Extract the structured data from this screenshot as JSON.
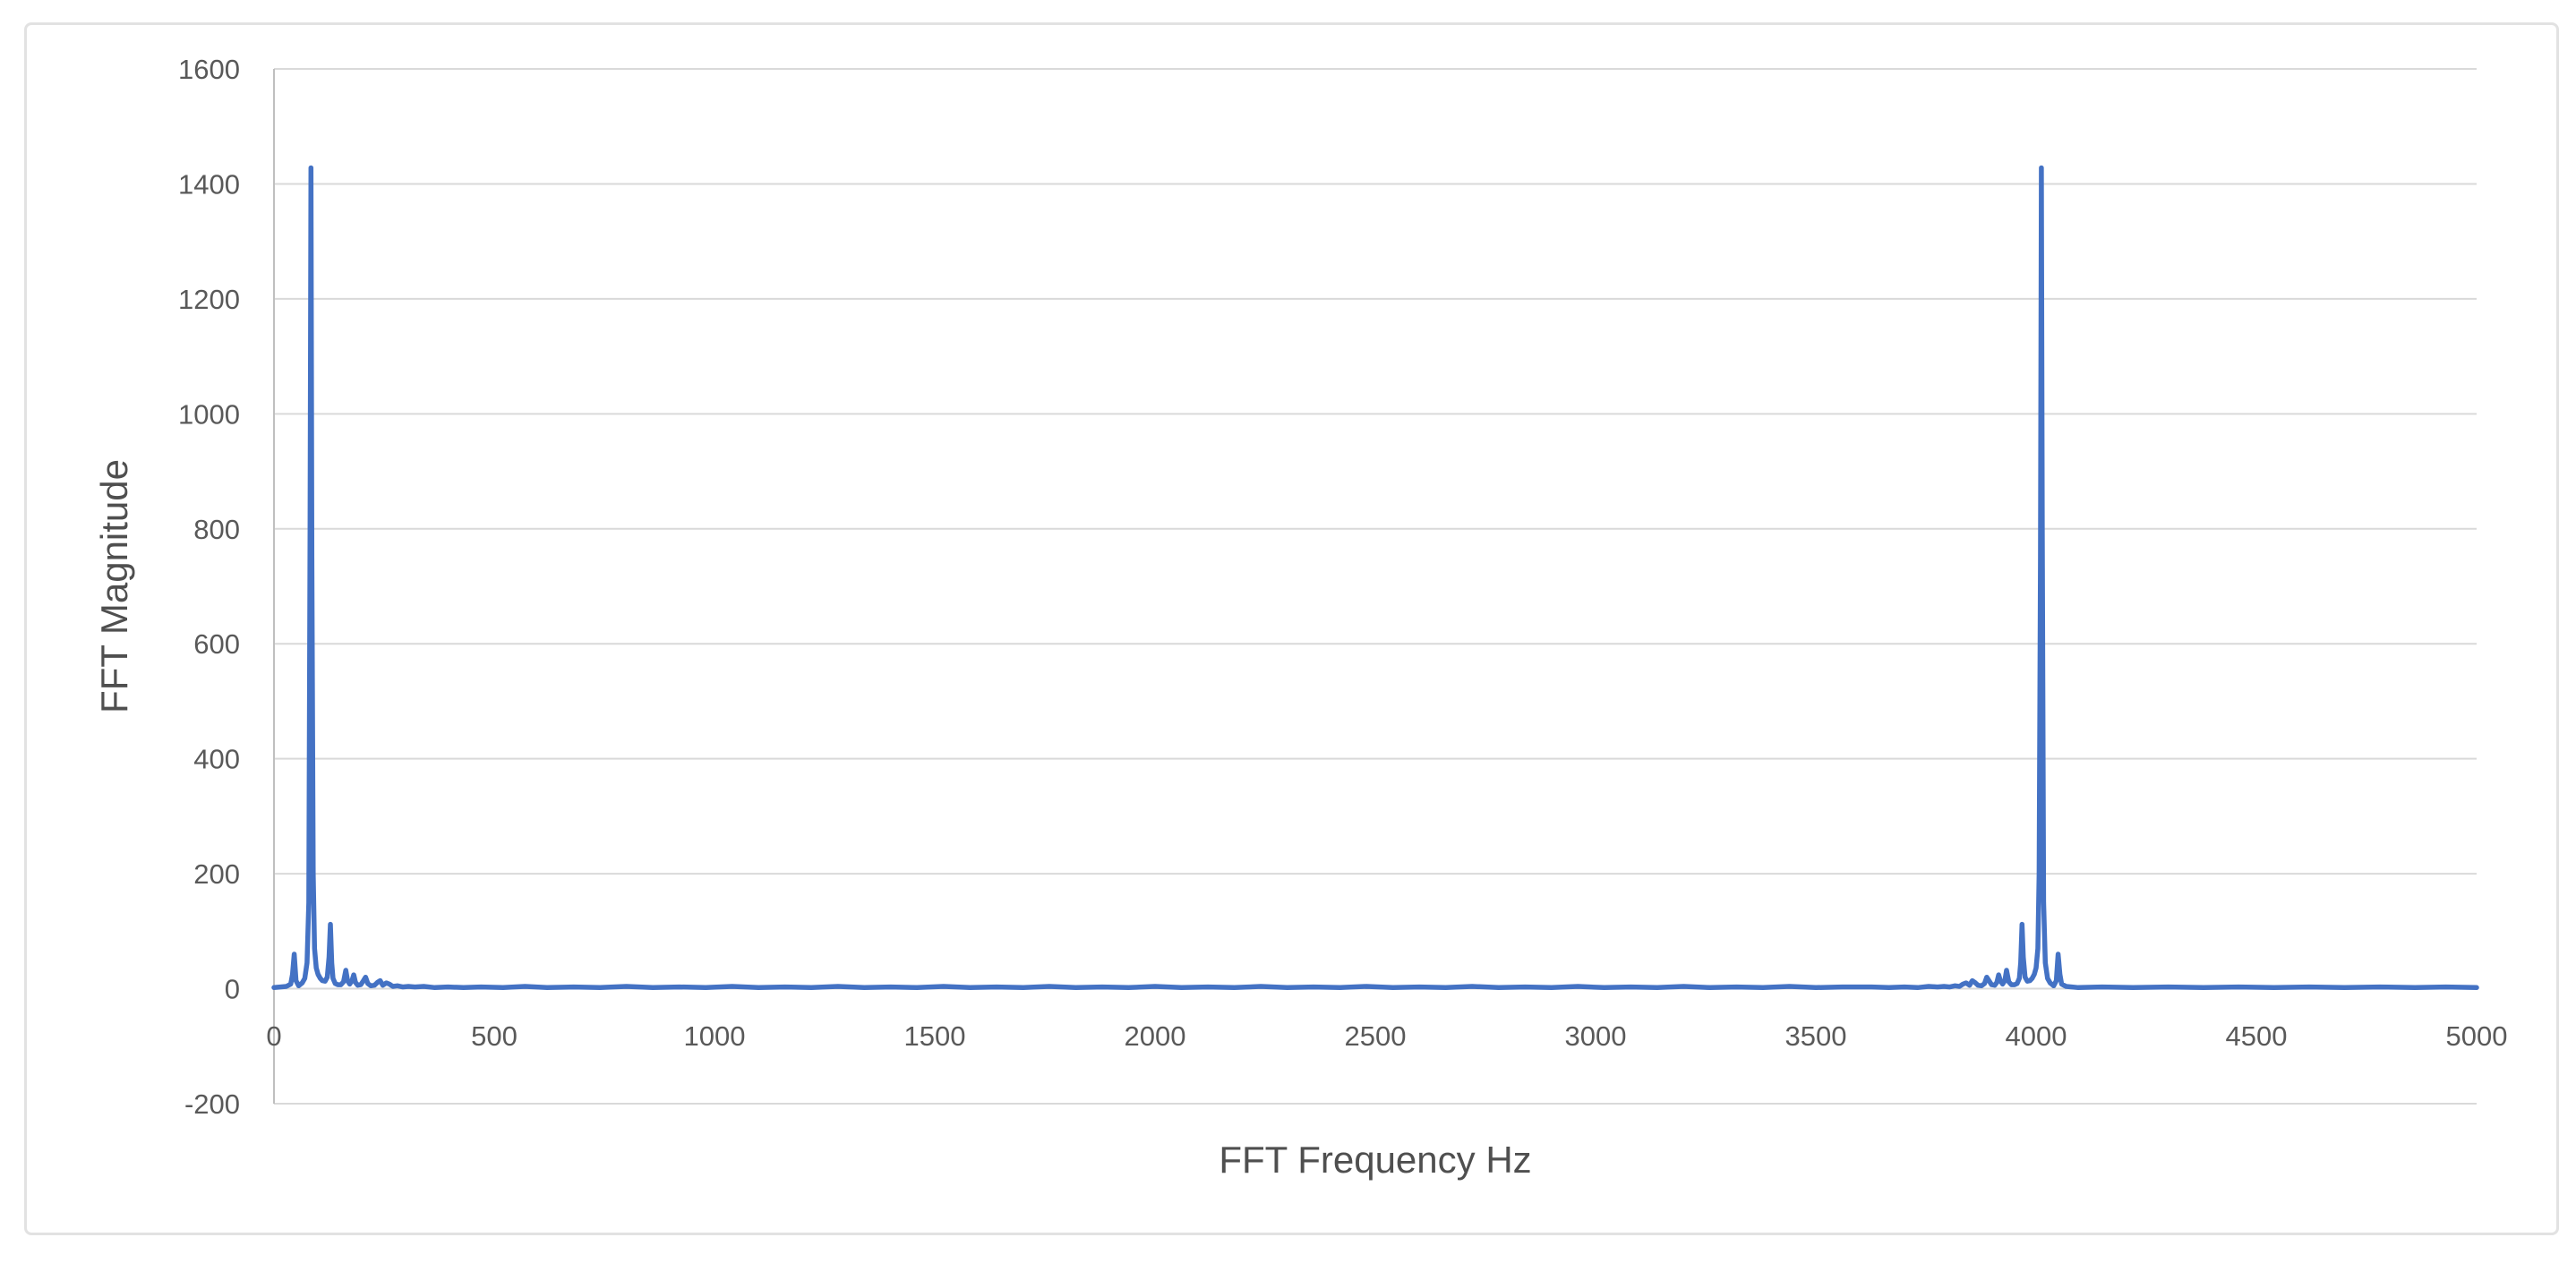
{
  "chart_data": {
    "type": "line",
    "title": "",
    "xlabel": "FFT Frequency Hz",
    "ylabel": "FFT Magnitude",
    "xlim": [
      0,
      5000
    ],
    "ylim": [
      -200,
      1600
    ],
    "x_ticks": [
      0,
      500,
      1000,
      1500,
      2000,
      2500,
      3000,
      3500,
      4000,
      4500,
      5000
    ],
    "y_ticks": [
      1600,
      1400,
      1200,
      1000,
      800,
      600,
      400,
      200,
      0,
      -200
    ],
    "grid": "horizontal gridlines only",
    "legend_position": "none",
    "line_color": "#4472C4",
    "gridline_color": "#d9d9d9",
    "axis_line_color": "#bfbfbf",
    "tick_label_color": "#595959",
    "axis_title_color": "#4f4f4f",
    "frame_border_color": "#e2e2e2",
    "line_width": 5.5,
    "main_peaks": [
      {
        "x": 84,
        "y": 1428
      },
      {
        "x": 4012,
        "y": 1428
      }
    ],
    "secondary_peaks": [
      {
        "x": 46,
        "y": 60
      },
      {
        "x": 128,
        "y": 112
      },
      {
        "x": 163,
        "y": 32
      },
      {
        "x": 3933,
        "y": 32
      },
      {
        "x": 3968,
        "y": 112
      },
      {
        "x": 4050,
        "y": 60
      }
    ],
    "series": [
      {
        "name": "FFT Magnitude",
        "points": [
          [
            0,
            2
          ],
          [
            15,
            3
          ],
          [
            28,
            4
          ],
          [
            38,
            8
          ],
          [
            42,
            25
          ],
          [
            46,
            60
          ],
          [
            50,
            14
          ],
          [
            56,
            5
          ],
          [
            64,
            10
          ],
          [
            70,
            18
          ],
          [
            75,
            45
          ],
          [
            79,
            150
          ],
          [
            82,
            800
          ],
          [
            84,
            1428
          ],
          [
            86,
            750
          ],
          [
            89,
            200
          ],
          [
            92,
            70
          ],
          [
            96,
            36
          ],
          [
            100,
            25
          ],
          [
            105,
            18
          ],
          [
            110,
            14
          ],
          [
            116,
            13
          ],
          [
            121,
            20
          ],
          [
            125,
            55
          ],
          [
            128,
            112
          ],
          [
            131,
            45
          ],
          [
            134,
            18
          ],
          [
            139,
            9
          ],
          [
            145,
            7
          ],
          [
            152,
            7
          ],
          [
            158,
            12
          ],
          [
            163,
            32
          ],
          [
            167,
            14
          ],
          [
            172,
            8
          ],
          [
            177,
            14
          ],
          [
            181,
            24
          ],
          [
            185,
            11
          ],
          [
            190,
            6
          ],
          [
            197,
            7
          ],
          [
            203,
            14
          ],
          [
            208,
            20
          ],
          [
            213,
            9
          ],
          [
            220,
            5
          ],
          [
            228,
            6
          ],
          [
            235,
            11
          ],
          [
            241,
            14
          ],
          [
            247,
            6
          ],
          [
            255,
            10
          ],
          [
            262,
            8
          ],
          [
            270,
            4
          ],
          [
            280,
            5
          ],
          [
            292,
            3
          ],
          [
            305,
            4
          ],
          [
            320,
            3
          ],
          [
            340,
            4
          ],
          [
            365,
            2
          ],
          [
            395,
            3
          ],
          [
            430,
            2
          ],
          [
            470,
            3
          ],
          [
            520,
            2
          ],
          [
            570,
            4
          ],
          [
            620,
            2
          ],
          [
            680,
            3
          ],
          [
            740,
            2
          ],
          [
            800,
            4
          ],
          [
            860,
            2
          ],
          [
            920,
            3
          ],
          [
            980,
            2
          ],
          [
            1040,
            4
          ],
          [
            1100,
            2
          ],
          [
            1160,
            3
          ],
          [
            1220,
            2
          ],
          [
            1280,
            4
          ],
          [
            1340,
            2
          ],
          [
            1400,
            3
          ],
          [
            1460,
            2
          ],
          [
            1520,
            4
          ],
          [
            1580,
            2
          ],
          [
            1640,
            3
          ],
          [
            1700,
            2
          ],
          [
            1760,
            4
          ],
          [
            1820,
            2
          ],
          [
            1880,
            3
          ],
          [
            1940,
            2
          ],
          [
            2000,
            4
          ],
          [
            2060,
            2
          ],
          [
            2120,
            3
          ],
          [
            2180,
            2
          ],
          [
            2240,
            4
          ],
          [
            2300,
            2
          ],
          [
            2360,
            3
          ],
          [
            2420,
            2
          ],
          [
            2480,
            4
          ],
          [
            2540,
            2
          ],
          [
            2600,
            3
          ],
          [
            2660,
            2
          ],
          [
            2720,
            4
          ],
          [
            2780,
            2
          ],
          [
            2840,
            3
          ],
          [
            2900,
            2
          ],
          [
            2960,
            4
          ],
          [
            3020,
            2
          ],
          [
            3080,
            3
          ],
          [
            3140,
            2
          ],
          [
            3200,
            4
          ],
          [
            3260,
            2
          ],
          [
            3320,
            3
          ],
          [
            3380,
            2
          ],
          [
            3440,
            4
          ],
          [
            3500,
            2
          ],
          [
            3560,
            3
          ],
          [
            3626,
            3
          ],
          [
            3666,
            2
          ],
          [
            3701,
            3
          ],
          [
            3731,
            2
          ],
          [
            3756,
            4
          ],
          [
            3776,
            3
          ],
          [
            3791,
            4
          ],
          [
            3804,
            3
          ],
          [
            3816,
            5
          ],
          [
            3826,
            4
          ],
          [
            3834,
            8
          ],
          [
            3841,
            10
          ],
          [
            3849,
            6
          ],
          [
            3855,
            14
          ],
          [
            3861,
            11
          ],
          [
            3868,
            6
          ],
          [
            3876,
            5
          ],
          [
            3883,
            9
          ],
          [
            3888,
            20
          ],
          [
            3893,
            14
          ],
          [
            3899,
            7
          ],
          [
            3906,
            6
          ],
          [
            3911,
            11
          ],
          [
            3915,
            24
          ],
          [
            3919,
            14
          ],
          [
            3924,
            8
          ],
          [
            3929,
            14
          ],
          [
            3933,
            32
          ],
          [
            3938,
            12
          ],
          [
            3944,
            7
          ],
          [
            3951,
            7
          ],
          [
            3957,
            9
          ],
          [
            3962,
            18
          ],
          [
            3965,
            45
          ],
          [
            3968,
            112
          ],
          [
            3971,
            55
          ],
          [
            3975,
            20
          ],
          [
            3980,
            13
          ],
          [
            3986,
            14
          ],
          [
            3991,
            18
          ],
          [
            3996,
            25
          ],
          [
            4000,
            36
          ],
          [
            4004,
            70
          ],
          [
            4007,
            200
          ],
          [
            4010,
            750
          ],
          [
            4012,
            1428
          ],
          [
            4014,
            800
          ],
          [
            4017,
            150
          ],
          [
            4021,
            45
          ],
          [
            4026,
            18
          ],
          [
            4032,
            10
          ],
          [
            4040,
            5
          ],
          [
            4046,
            14
          ],
          [
            4050,
            60
          ],
          [
            4054,
            25
          ],
          [
            4058,
            8
          ],
          [
            4068,
            4
          ],
          [
            4081,
            3
          ],
          [
            4096,
            2
          ],
          [
            4150,
            3
          ],
          [
            4220,
            2
          ],
          [
            4300,
            3
          ],
          [
            4380,
            2
          ],
          [
            4460,
            3
          ],
          [
            4540,
            2
          ],
          [
            4620,
            3
          ],
          [
            4700,
            2
          ],
          [
            4780,
            3
          ],
          [
            4860,
            2
          ],
          [
            4930,
            3
          ],
          [
            5000,
            2
          ]
        ]
      }
    ]
  }
}
